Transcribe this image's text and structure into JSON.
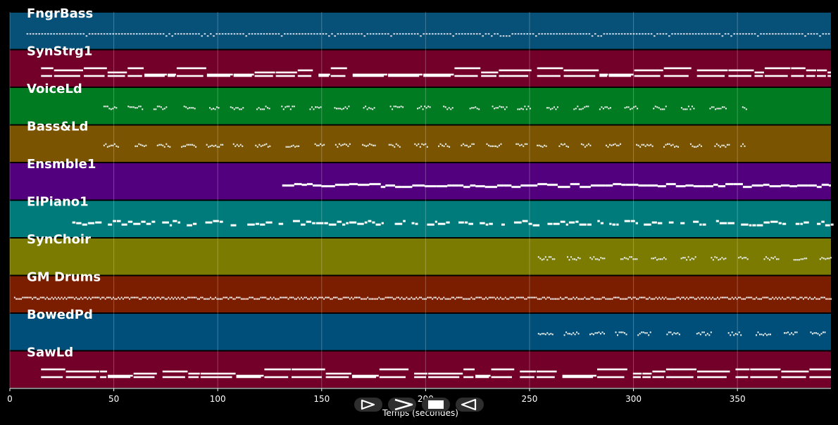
{
  "chart_data": {
    "type": "piano-roll",
    "xlabel": "Temps (secondes)",
    "xlim": [
      0,
      395
    ],
    "x_ticks": [
      0,
      50,
      100,
      150,
      200,
      250,
      300,
      350
    ],
    "grid": true,
    "tracks": [
      {
        "name": "FngrBass",
        "color": "#075077",
        "pattern": "bass",
        "start": 8,
        "end": 395
      },
      {
        "name": "SynStrg1",
        "color": "#730028",
        "pattern": "strings",
        "start": 15,
        "end": 395
      },
      {
        "name": "VoiceLd",
        "color": "#007b22",
        "pattern": "melody",
        "start": 45,
        "end": 354
      },
      {
        "name": "Bass&Ld",
        "color": "#7b5402",
        "pattern": "melody",
        "start": 45,
        "end": 354
      },
      {
        "name": "Ensmble1",
        "color": "#52007e",
        "pattern": "pad",
        "start": 131,
        "end": 395
      },
      {
        "name": "ElPiano1",
        "color": "#007b7b",
        "pattern": "piano",
        "start": 30,
        "end": 395
      },
      {
        "name": "SynChoir",
        "color": "#7b7b02",
        "pattern": "melody",
        "start": 254,
        "end": 395
      },
      {
        "name": "GM Drums",
        "color": "#7b1e00",
        "pattern": "drums",
        "start": 2,
        "end": 395
      },
      {
        "name": "BowedPd",
        "color": "#004f7b",
        "pattern": "melody",
        "start": 254,
        "end": 395
      },
      {
        "name": "SawLd",
        "color": "#730028",
        "pattern": "strings",
        "start": 15,
        "end": 395
      }
    ]
  },
  "controls": {
    "play_icon": "play-icon",
    "forward_icon": "forward-icon",
    "stop_icon": "stop-icon",
    "rewind_icon": "rewind-icon"
  }
}
